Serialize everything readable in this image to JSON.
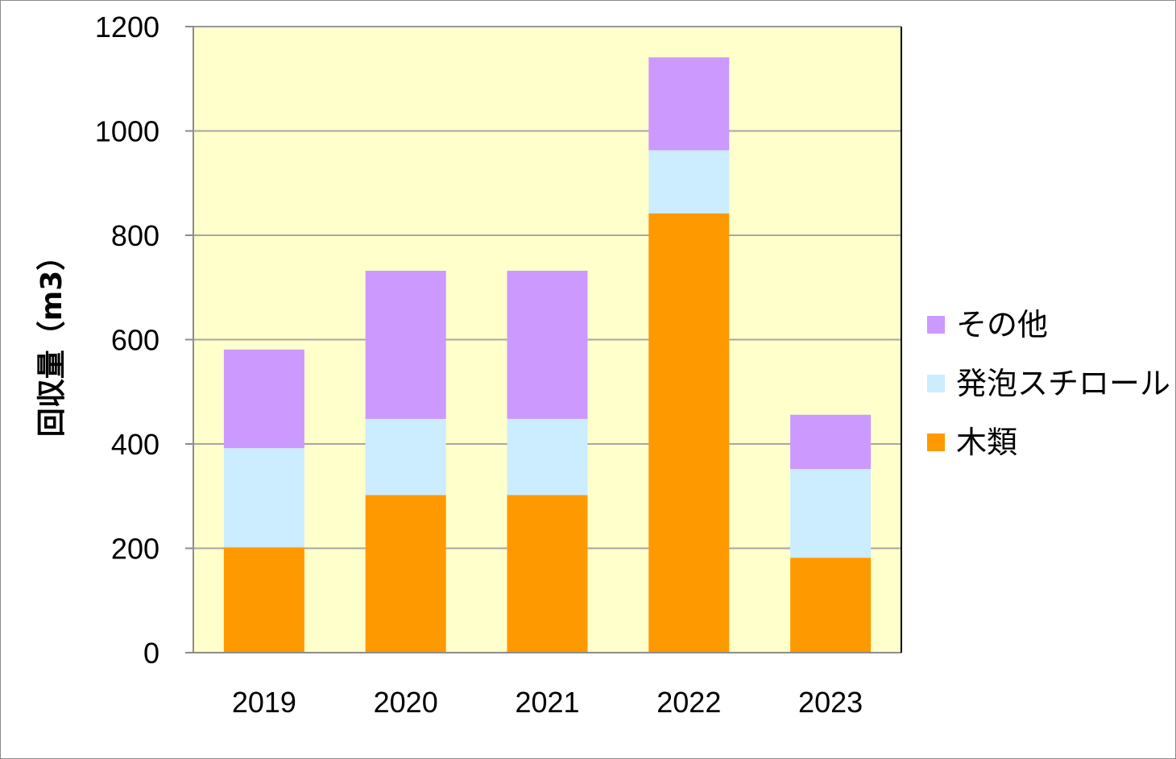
{
  "chart_data": {
    "type": "bar",
    "stacked": true,
    "categories": [
      "2019",
      "2020",
      "2021",
      "2022",
      "2023"
    ],
    "series": [
      {
        "name": "木類",
        "color": "#FF9900",
        "values": [
          202,
          302,
          302,
          842,
          182
        ]
      },
      {
        "name": "発泡スチロール",
        "color": "#CCECFF",
        "values": [
          190,
          146,
          146,
          121,
          170
        ]
      },
      {
        "name": "その他",
        "color": "#CC99FF",
        "values": [
          189,
          284,
          284,
          178,
          104
        ]
      }
    ],
    "legend_order": [
      "その他",
      "発泡スチロール",
      "木類"
    ],
    "legend_position": "right",
    "ylabel": "回収量（m3）",
    "ylim": [
      0,
      1200
    ],
    "yticks": [
      "0",
      "200",
      "400",
      "600",
      "800",
      "1000",
      "1200"
    ],
    "grid": true,
    "plot_background": "#FFFFCC",
    "gridline_color": "#A6A6A6"
  }
}
